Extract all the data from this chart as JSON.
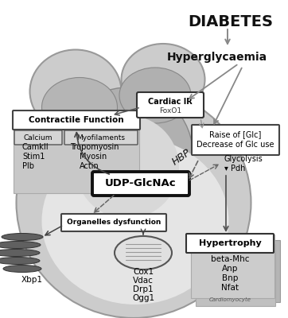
{
  "background_color": "#ffffff",
  "text_color": "#111111",
  "title": "DIABETES",
  "subtitle": "Hyperglycaemia",
  "udp_label": "UDP-GlcNAc",
  "cardiac_ir_label": "Cardiac IR",
  "foxo1_label": "FoxO1",
  "contractile_label": "Contractile Function",
  "calcium_label": "Calcium",
  "myofilaments_label": "Myofilaments",
  "camkii_label": "CamkII",
  "tropomyosin_label": "Tropomyosin",
  "stim1_label": "Stim1",
  "myosin_label": "Myosin",
  "plb_label": "Plb",
  "actin_label": "Actin",
  "cardiomyocyte_label1": "Cardiomyocyte",
  "hbp_label": "HBP",
  "raise_glc_label": "Raise of [Glc]",
  "decrease_glc_label": "Decrease of Glc use",
  "glycolysis_label": "Glycolysis",
  "pdh_label": "▾ Pdh",
  "hypertrophy_label": "Hypertrophy",
  "beta_mhc_label": "beta-Mhc",
  "anp_label": "Anp",
  "bnp_label": "Bnp",
  "nfat_label": "Nfat",
  "cardiomyocyte_label2": "Cardiomyocyte",
  "organelles_label": "Organelles dysfunction",
  "cox1_label": "Cox1",
  "vdac_label": "Vdac",
  "drp1_label": "Drp1",
  "ogg1_label": "Ogg1",
  "xbp1_label": "Xbp1"
}
